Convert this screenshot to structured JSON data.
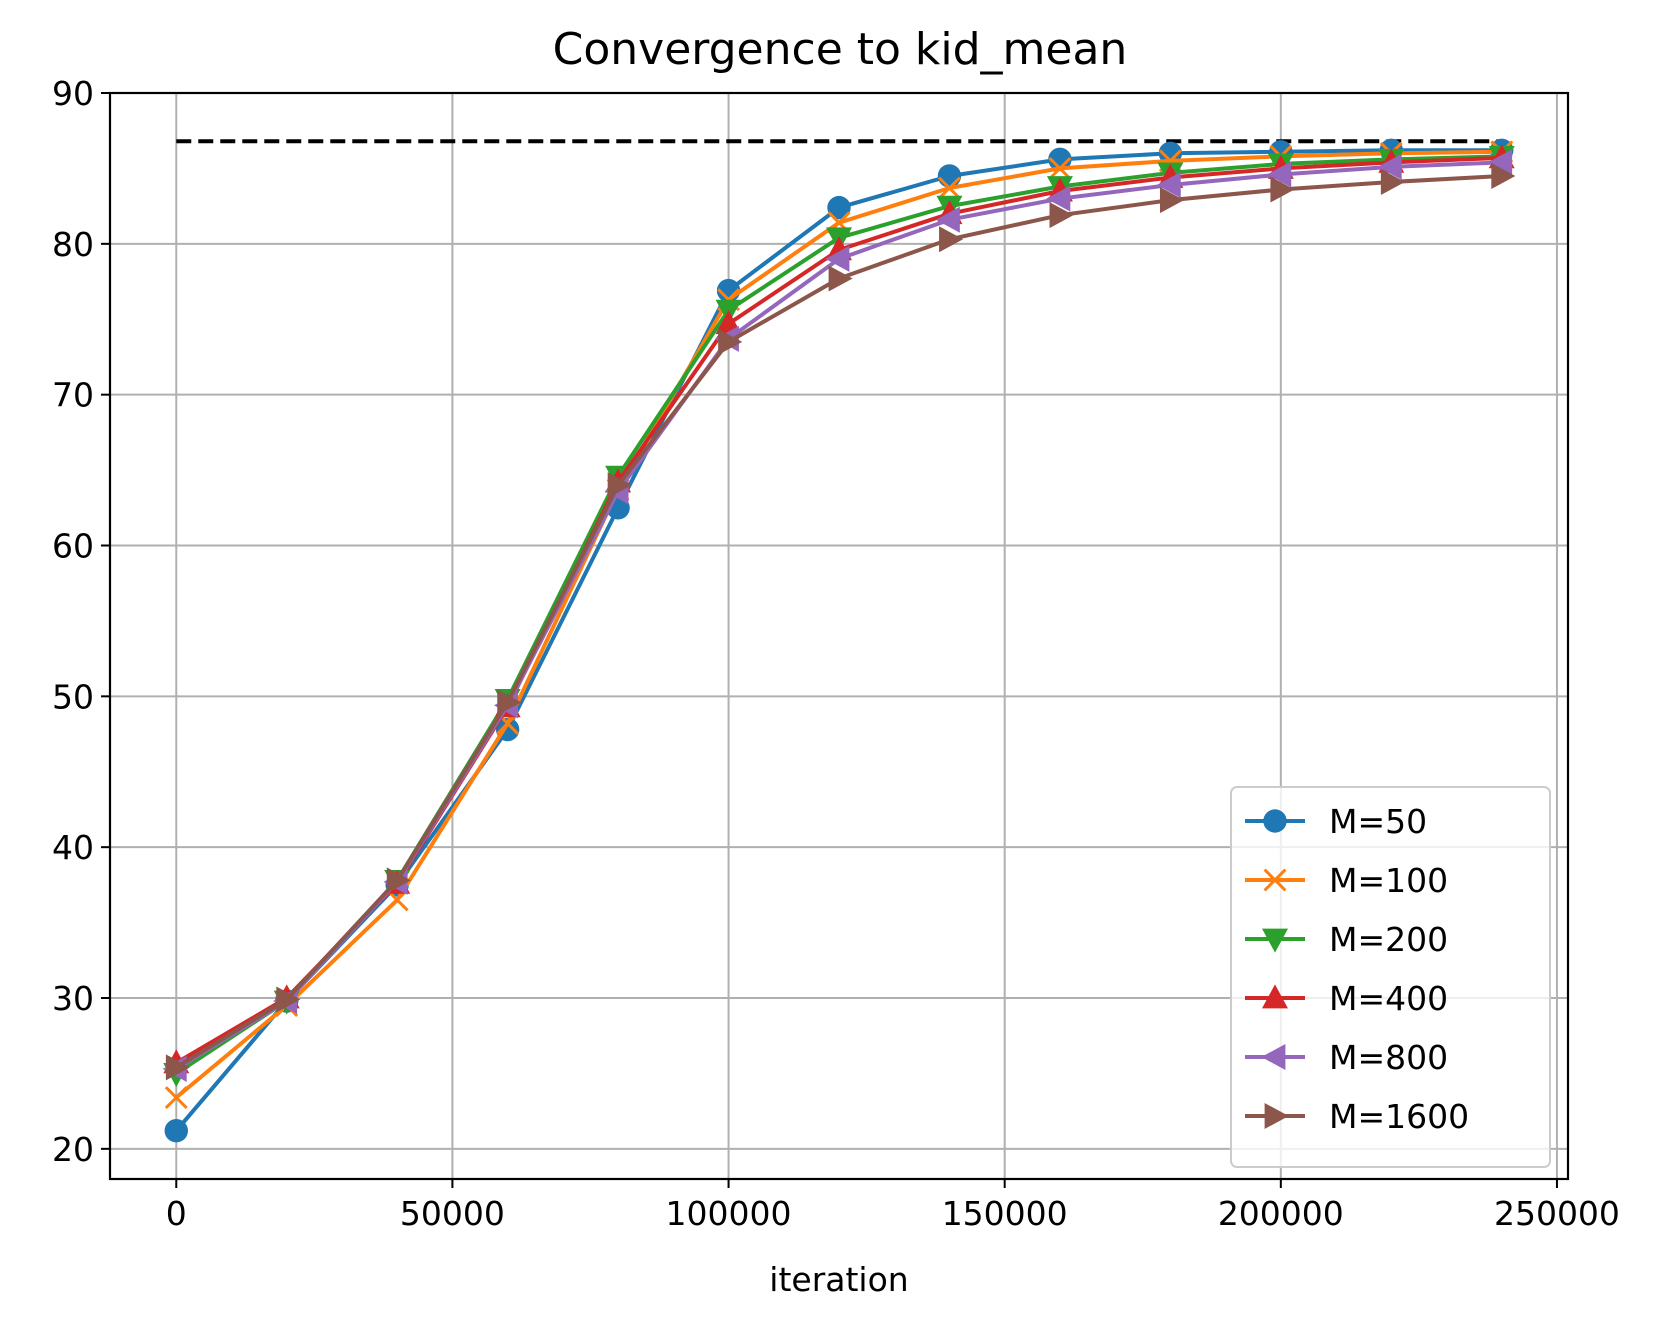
{
  "chart_data": {
    "type": "line",
    "title": "Convergence to kid_mean",
    "xlabel": "iteration",
    "ylabel": "",
    "xlim": [
      -12000,
      252000
    ],
    "ylim": [
      18,
      90
    ],
    "xticks": [
      0,
      50000,
      100000,
      150000,
      200000,
      250000
    ],
    "xtick_labels": [
      "0",
      "50000",
      "100000",
      "150000",
      "200000",
      "250000"
    ],
    "yticks": [
      20,
      30,
      40,
      50,
      60,
      70,
      80,
      90
    ],
    "ytick_labels": [
      "20",
      "30",
      "40",
      "50",
      "60",
      "70",
      "80",
      "90"
    ],
    "grid": true,
    "legend_position": "lower-right",
    "x": [
      0,
      20000,
      40000,
      60000,
      80000,
      100000,
      120000,
      140000,
      160000,
      180000,
      200000,
      220000,
      240000
    ],
    "reference_line": {
      "y": 86.8,
      "x_range": [
        0,
        240000
      ],
      "color": "#000000",
      "style": "dashed"
    },
    "series": [
      {
        "name": "M=50",
        "color": "#1f77b4",
        "marker": "circle",
        "values": [
          21.2,
          29.8,
          37.5,
          47.8,
          62.5,
          76.9,
          82.4,
          84.5,
          85.6,
          86.0,
          86.1,
          86.2,
          86.2
        ]
      },
      {
        "name": "M=100",
        "color": "#ff7f0e",
        "marker": "x",
        "values": [
          23.4,
          29.5,
          36.5,
          48.2,
          63.7,
          76.3,
          81.4,
          83.7,
          85.0,
          85.5,
          85.8,
          86.0,
          86.1
        ]
      },
      {
        "name": "M=200",
        "color": "#2ca02c",
        "marker": "triangle-down",
        "values": [
          25.0,
          29.8,
          37.8,
          49.8,
          64.6,
          75.6,
          80.4,
          82.5,
          83.8,
          84.7,
          85.3,
          85.6,
          85.8
        ]
      },
      {
        "name": "M=400",
        "color": "#d62728",
        "marker": "triangle-up",
        "values": [
          25.7,
          30.0,
          37.6,
          49.3,
          64.2,
          74.7,
          79.6,
          82.0,
          83.5,
          84.4,
          85.0,
          85.4,
          85.7
        ]
      },
      {
        "name": "M=800",
        "color": "#9467bd",
        "marker": "triangle-left",
        "values": [
          25.3,
          29.8,
          37.7,
          49.4,
          63.6,
          73.7,
          79.0,
          81.6,
          83.0,
          83.9,
          84.6,
          85.1,
          85.4
        ]
      },
      {
        "name": "M=1600",
        "color": "#8c564b",
        "marker": "triangle-right",
        "values": [
          25.4,
          29.9,
          37.8,
          49.6,
          64.0,
          73.5,
          77.7,
          80.3,
          81.9,
          82.9,
          83.6,
          84.1,
          84.5
        ]
      }
    ]
  }
}
